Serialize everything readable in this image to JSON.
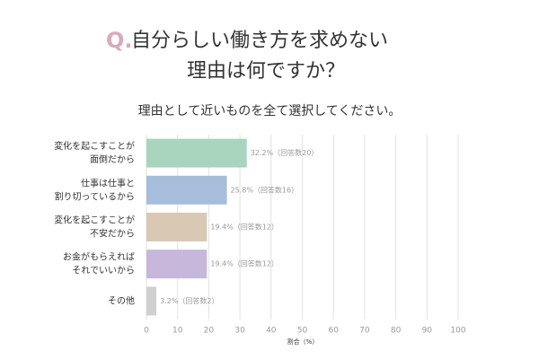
{
  "chart_data": {
    "type": "bar",
    "orientation": "horizontal",
    "title_marker": "Q.",
    "title": [
      "自分らしい働き方を求めない",
      "理由は何ですか？"
    ],
    "subtitle": "理由として近いものを全て選択してください。",
    "categories": [
      [
        "変化を起こすことが",
        "面倒だから"
      ],
      [
        "仕事は仕事と",
        "割り切っているから"
      ],
      [
        "変化を起こすことが",
        "不安だから"
      ],
      [
        "お金がもらえれば",
        "それでいいから"
      ],
      [
        "その他"
      ]
    ],
    "values": [
      32.2,
      25.8,
      19.4,
      19.4,
      3.2
    ],
    "value_labels": [
      "32.2%（回答数20）",
      "25.8%（回答数16）",
      "19.4%（回答数12）",
      "19.4%（回答数12）",
      "3.2%（回答数2）"
    ],
    "colors": [
      "#a9d5bf",
      "#a6bddb",
      "#d9c8b4",
      "#c7b7da",
      "#d0d0d0"
    ],
    "title_marker_color": "#d9a9bd",
    "xlabel": "割合（%）",
    "xlim": [
      0,
      100
    ],
    "xticks": [
      0,
      10,
      20,
      30,
      40,
      50,
      60,
      70,
      80,
      90,
      100
    ],
    "grid": true
  }
}
